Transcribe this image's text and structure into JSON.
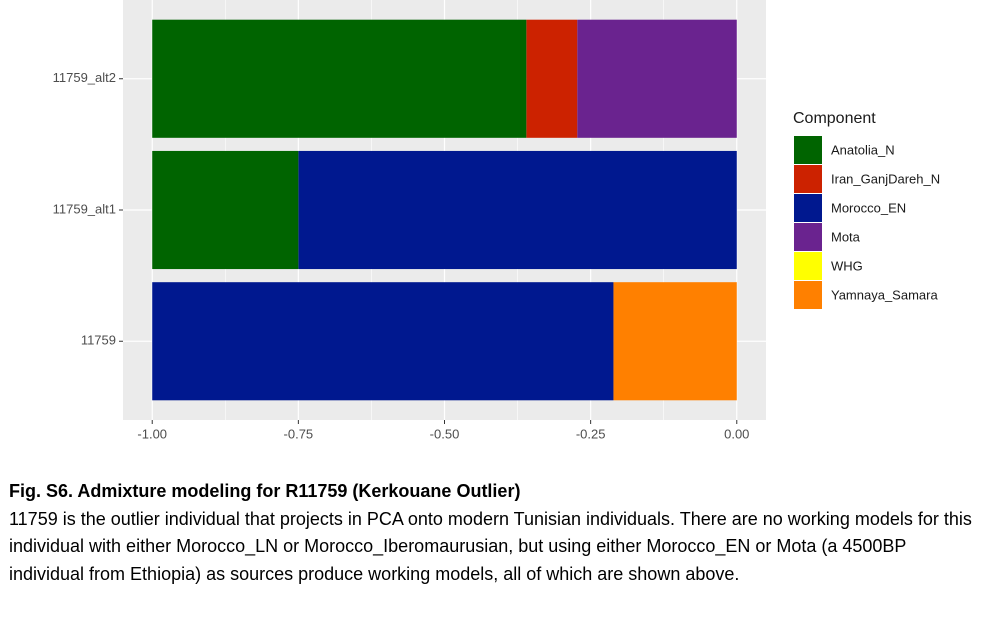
{
  "chart_data": {
    "type": "stacked_barh",
    "categories": [
      "11759",
      "11759_alt1",
      "11759_alt2"
    ],
    "series": [
      {
        "name": "Anatolia_N",
        "color": "#006400",
        "values": [
          0,
          -0.25,
          -0.64
        ]
      },
      {
        "name": "Iran_GanjDareh_N",
        "color": "#cc2200",
        "values": [
          0,
          0,
          -0.087
        ]
      },
      {
        "name": "Morocco_EN",
        "color": "#00188f",
        "values": [
          -0.789,
          -0.75,
          0
        ]
      },
      {
        "name": "Mota",
        "color": "#6a238f",
        "values": [
          0,
          0,
          -0.273
        ]
      },
      {
        "name": "WHG",
        "color": "#ffff00",
        "values": [
          0,
          0,
          0
        ]
      },
      {
        "name": "Yamnaya_Samara",
        "color": "#ff8000",
        "values": [
          -0.211,
          0,
          0
        ]
      }
    ],
    "legend_title": "Component",
    "xlim": [
      -1.05,
      0.05
    ],
    "xticks": [
      {
        "value": -1,
        "label": "-1.00"
      },
      {
        "value": -0.75,
        "label": "-0.75"
      },
      {
        "value": -0.5,
        "label": "-0.50"
      },
      {
        "value": -0.25,
        "label": "-0.25"
      },
      {
        "value": 0,
        "label": "0.00"
      }
    ],
    "grid": true
  },
  "caption": {
    "title": "Fig. S6. Admixture modeling for R11759 (Kerkouane Outlier)",
    "text": "11759 is the outlier individual that projects in PCA onto modern Tunisian individuals. There are no working models for this individual with either Morocco_LN or Morocco_Iberomaurusian, but using either Morocco_EN or Mota (a 4500BP individual from Ethiopia) as sources produce working models, all of which are shown above."
  }
}
